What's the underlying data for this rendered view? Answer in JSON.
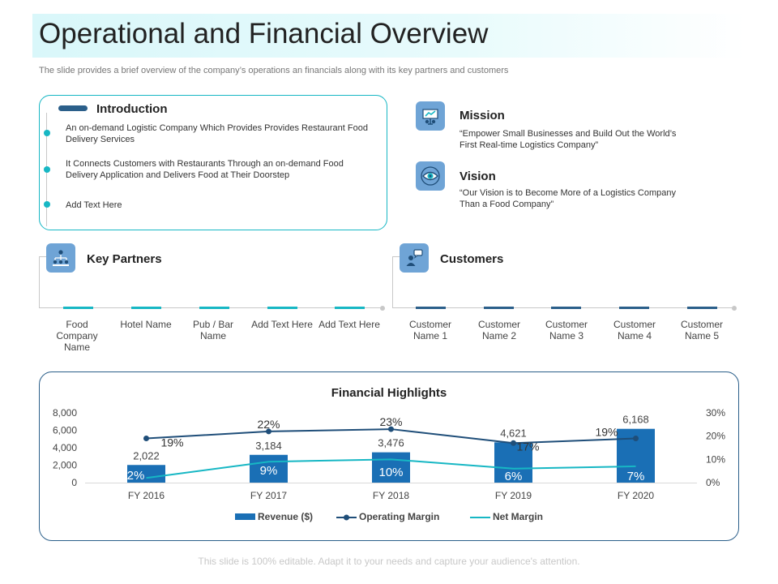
{
  "title": "Operational and Financial Overview",
  "subtitle": "The slide provides a brief overview of the company’s operations an financials along with its key partners and customers",
  "introduction": {
    "title": "Introduction",
    "bullets": [
      "An on-demand Logistic Company Which Provides Provides Restaurant Food Delivery Services",
      "It Connects Customers with Restaurants Through an on-demand Food Delivery Application and Delivers Food at Their Doorstep",
      "Add Text Here"
    ]
  },
  "mission": {
    "title": "Mission",
    "text": "“Empower Small Businesses and Build Out the World’s First Real-time Logistics Company”",
    "icon": "strategy-board-icon"
  },
  "vision": {
    "title": "Vision",
    "text": "“Our Vision is to Become More of a Logistics Company Than a Food Company”",
    "icon": "eye-icon"
  },
  "key_partners": {
    "title": "Key Partners",
    "icon": "org-chart-icon",
    "accent": "#17b7c4",
    "items": [
      "Food Company Name",
      "Hotel Name",
      "Pub / Bar Name",
      "Add Text Here",
      "Add Text Here"
    ]
  },
  "customers": {
    "title": "Customers",
    "icon": "customer-chat-icon",
    "accent": "#2b5f8a",
    "items": [
      "Customer Name 1",
      "Customer Name 2",
      "Customer Name 3",
      "Customer Name 4",
      "Customer Name 5"
    ]
  },
  "chart_data": {
    "type": "bar",
    "title": "Financial Highlights",
    "categories": [
      "FY 2016",
      "FY 2017",
      "FY 2018",
      "FY 2019",
      "FY 2020"
    ],
    "series": [
      {
        "name": "Revenue ($)",
        "kind": "bar",
        "axis": "left",
        "values": [
          2022,
          3184,
          3476,
          4621,
          6168
        ],
        "labels": [
          "2,022",
          "3,184",
          "3,476",
          "4,621",
          "6,168"
        ],
        "color": "#1a6fb5"
      },
      {
        "name": "Operating Margin",
        "kind": "line",
        "axis": "right",
        "values": [
          19,
          22,
          23,
          17,
          19
        ],
        "labels": [
          "19%",
          "22%",
          "23%",
          "17%",
          "19%"
        ],
        "color": "#1f4e79"
      },
      {
        "name": "Net Margin",
        "kind": "line",
        "axis": "right",
        "values": [
          2,
          9,
          10,
          6,
          7
        ],
        "labels": [
          "2%",
          "9%",
          "10%",
          "6%",
          "7%"
        ],
        "color": "#17b7c4"
      }
    ],
    "y_left": {
      "ticks": [
        "8,000",
        "6,000",
        "4,000",
        "2,000",
        "0"
      ],
      "tick_values": [
        8000,
        6000,
        4000,
        2000,
        0
      ],
      "range": [
        0,
        8000
      ]
    },
    "y_right": {
      "ticks": [
        "30%",
        "20%",
        "10%",
        "0%"
      ],
      "tick_values": [
        30,
        20,
        10,
        0
      ],
      "range": [
        0,
        30
      ]
    },
    "legend_position": "bottom",
    "grid": false
  },
  "footer": "This slide is 100% editable. Adapt it to your needs and capture your audience's attention."
}
